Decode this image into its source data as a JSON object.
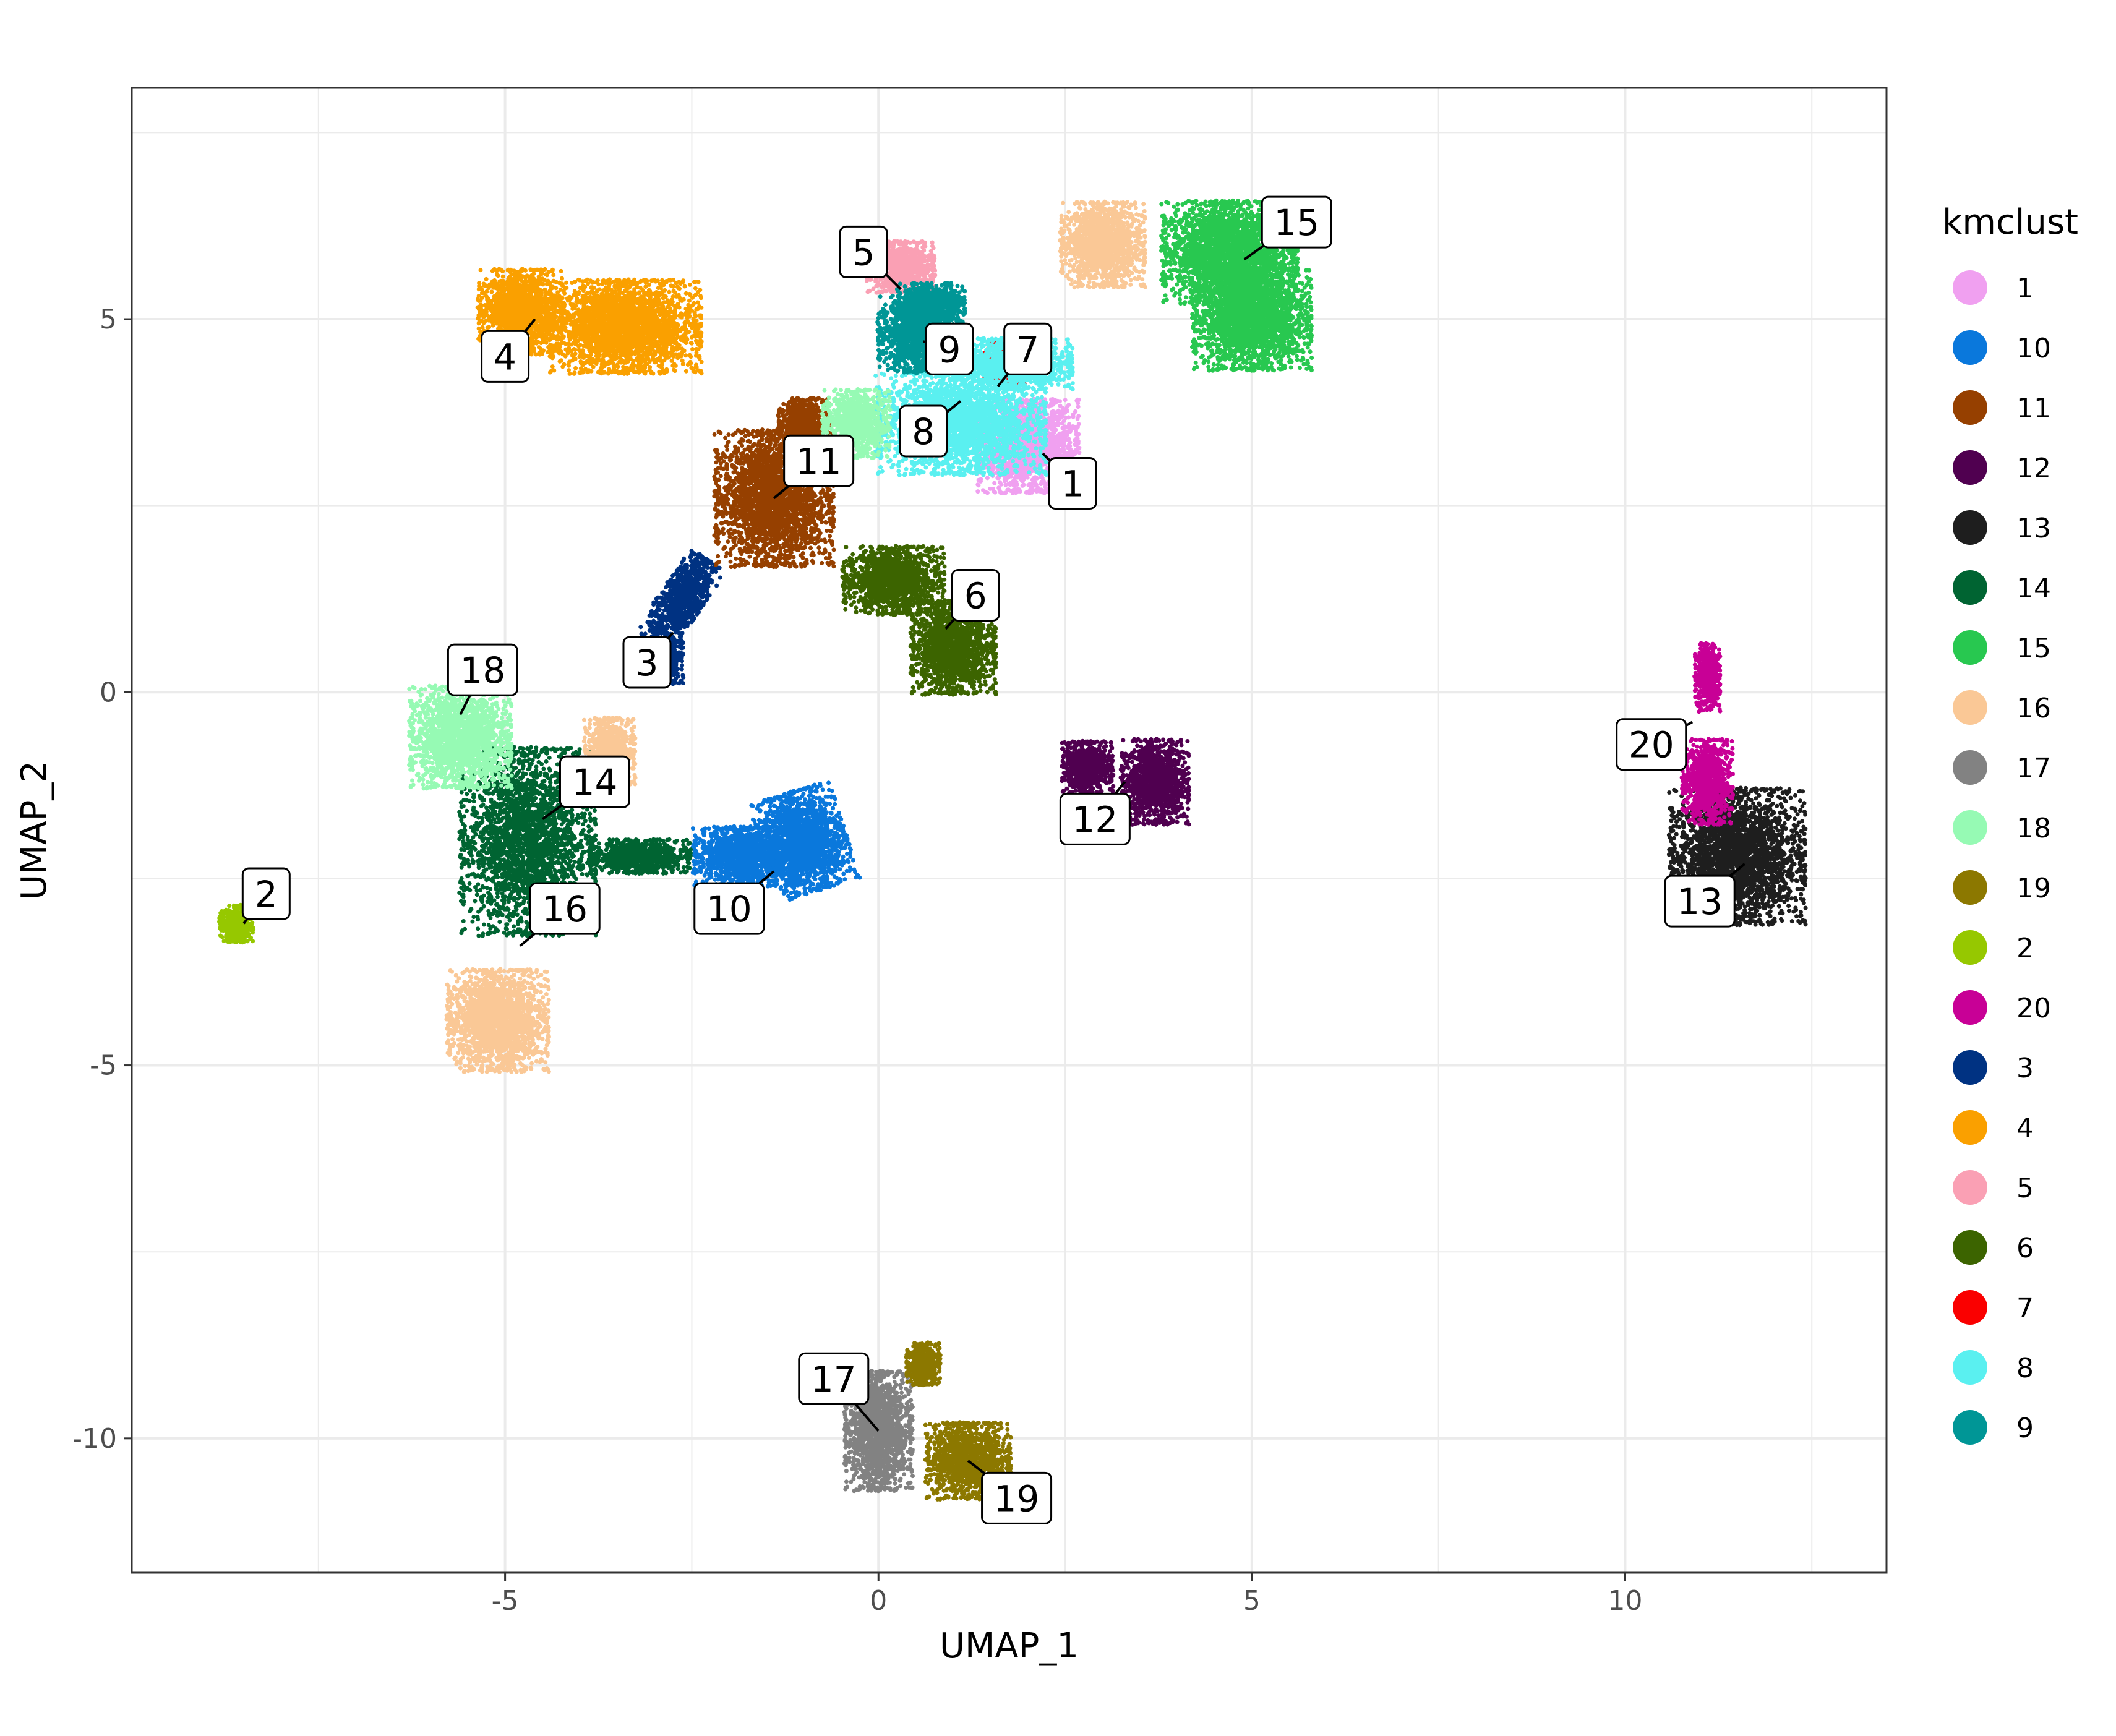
{
  "chart_data": {
    "type": "scatter",
    "title": "",
    "xlabel": "UMAP_1",
    "ylabel": "UMAP_2",
    "xlim": [
      -10,
      13.5
    ],
    "ylim": [
      -11.8,
      8.1
    ],
    "xticks": [
      -5,
      0,
      5,
      10
    ],
    "yticks": [
      -10,
      -5,
      0,
      5
    ],
    "xtick_labels": [
      "-5",
      "0",
      "5",
      "10"
    ],
    "ytick_labels": [
      "-10",
      "-5",
      "0",
      "5"
    ],
    "grid": true,
    "legend": {
      "title": "kmclust",
      "placement": "right",
      "entries": [
        {
          "name": "1",
          "color": "#F0A0F0"
        },
        {
          "name": "10",
          "color": "#0A78DC"
        },
        {
          "name": "11",
          "color": "#964000"
        },
        {
          "name": "12",
          "color": "#500050"
        },
        {
          "name": "13",
          "color": "#1E1E1E"
        },
        {
          "name": "14",
          "color": "#006432"
        },
        {
          "name": "15",
          "color": "#28C850"
        },
        {
          "name": "16",
          "color": "#FAC896"
        },
        {
          "name": "17",
          "color": "#828282"
        },
        {
          "name": "18",
          "color": "#96FAB4"
        },
        {
          "name": "19",
          "color": "#8C7800"
        },
        {
          "name": "2",
          "color": "#96C800"
        },
        {
          "name": "20",
          "color": "#C80096"
        },
        {
          "name": "3",
          "color": "#003282"
        },
        {
          "name": "4",
          "color": "#FAA000"
        },
        {
          "name": "5",
          "color": "#FAA0B4"
        },
        {
          "name": "6",
          "color": "#3C6400"
        },
        {
          "name": "7",
          "color": "#FA0000"
        },
        {
          "name": "8",
          "color": "#5AF0F0"
        },
        {
          "name": "9",
          "color": "#009696"
        }
      ]
    },
    "clusters": [
      {
        "name": "1",
        "color": "#F0A0F0",
        "blobs": [
          [
            2.0,
            3.3,
            0.6,
            0.55,
            0
          ]
        ],
        "label_at": [
          2.6,
          2.8
        ],
        "point_at": [
          2.2,
          3.2
        ]
      },
      {
        "name": "2",
        "color": "#96C800",
        "blobs": [
          [
            -8.6,
            -3.1,
            0.2,
            0.22,
            0
          ]
        ],
        "label_at": [
          -8.2,
          -2.7
        ],
        "point_at": [
          -8.5,
          -3.1
        ]
      },
      {
        "name": "3",
        "color": "#003282",
        "blobs": [
          [
            -2.6,
            1.3,
            0.25,
            0.5,
            -0.6
          ],
          [
            -2.9,
            0.5,
            0.25,
            0.35,
            0
          ]
        ],
        "label_at": [
          -3.1,
          0.4
        ],
        "point_at": [
          -2.75,
          0.8
        ]
      },
      {
        "name": "4",
        "color": "#FAA000",
        "blobs": [
          [
            -4.8,
            5.1,
            0.5,
            0.5,
            0
          ],
          [
            -3.4,
            4.9,
            0.9,
            0.55,
            0
          ]
        ],
        "label_at": [
          -5.0,
          4.5
        ],
        "point_at": [
          -4.6,
          5.0
        ]
      },
      {
        "name": "5",
        "color": "#FAA0B4",
        "blobs": [
          [
            0.3,
            5.7,
            0.4,
            0.3,
            0
          ]
        ],
        "label_at": [
          -0.2,
          5.9
        ],
        "point_at": [
          0.3,
          5.4
        ]
      },
      {
        "name": "6",
        "color": "#3C6400",
        "blobs": [
          [
            0.2,
            1.5,
            0.6,
            0.4,
            0
          ],
          [
            1.0,
            0.6,
            0.5,
            0.55,
            0
          ]
        ],
        "label_at": [
          1.3,
          1.3
        ],
        "point_at": [
          0.9,
          0.85
        ]
      },
      {
        "name": "7",
        "color": "#FA0000",
        "blobs": [
          [
            1.7,
            4.4,
            0.25,
            0.25,
            0
          ]
        ],
        "label_at": [
          2.0,
          4.6
        ],
        "point_at": [
          1.6,
          4.1
        ]
      },
      {
        "name": "8",
        "color": "#5AF0F0",
        "blobs": [
          [
            1.1,
            3.6,
            1.0,
            0.6,
            0
          ],
          [
            1.8,
            4.4,
            0.7,
            0.3,
            0
          ]
        ],
        "label_at": [
          0.6,
          3.5
        ],
        "point_at": [
          1.1,
          3.9
        ]
      },
      {
        "name": "9",
        "color": "#009696",
        "blobs": [
          [
            0.5,
            4.8,
            0.45,
            0.45,
            0
          ],
          [
            0.7,
            5.2,
            0.4,
            0.25,
            0
          ]
        ],
        "label_at": [
          0.95,
          4.6
        ],
        "point_at": [
          0.6,
          4.7
        ]
      },
      {
        "name": "10",
        "color": "#0A78DC",
        "blobs": [
          [
            -1.8,
            -2.2,
            0.6,
            0.35,
            0
          ],
          [
            -1.0,
            -2.0,
            0.5,
            0.6,
            0.3
          ]
        ],
        "label_at": [
          -2.0,
          -2.9
        ],
        "point_at": [
          -1.4,
          -2.4
        ]
      },
      {
        "name": "11",
        "color": "#964000",
        "blobs": [
          [
            -1.4,
            2.6,
            0.7,
            0.8,
            0
          ],
          [
            -1.0,
            3.6,
            0.3,
            0.3,
            0
          ]
        ],
        "label_at": [
          -0.8,
          3.1
        ],
        "point_at": [
          -1.4,
          2.6
        ]
      },
      {
        "name": "12",
        "color": "#500050",
        "blobs": [
          [
            3.7,
            -1.2,
            0.4,
            0.5,
            0
          ],
          [
            2.8,
            -1.0,
            0.3,
            0.3,
            0
          ]
        ],
        "label_at": [
          2.9,
          -1.7
        ],
        "point_at": [
          3.3,
          -1.2
        ]
      },
      {
        "name": "13",
        "color": "#1E1E1E",
        "blobs": [
          [
            11.5,
            -2.2,
            0.8,
            0.8,
            0
          ]
        ],
        "label_at": [
          11.0,
          -2.8
        ],
        "point_at": [
          11.6,
          -2.3
        ]
      },
      {
        "name": "14",
        "color": "#006432",
        "blobs": [
          [
            -4.7,
            -2.0,
            0.8,
            1.1,
            0
          ],
          [
            -3.2,
            -2.2,
            0.6,
            0.2,
            0
          ]
        ],
        "label_at": [
          -3.8,
          -1.2
        ],
        "point_at": [
          -4.5,
          -1.7
        ]
      },
      {
        "name": "15",
        "color": "#28C850",
        "blobs": [
          [
            4.7,
            5.9,
            0.8,
            0.6,
            0
          ],
          [
            5.0,
            5.0,
            0.7,
            0.6,
            0
          ]
        ],
        "label_at": [
          5.6,
          6.3
        ],
        "point_at": [
          4.9,
          5.8
        ]
      },
      {
        "name": "16",
        "color": "#FAC896",
        "blobs": [
          [
            -5.1,
            -4.4,
            0.6,
            0.6,
            0
          ],
          [
            -3.6,
            -0.8,
            0.3,
            0.4,
            0
          ],
          [
            3.0,
            6.0,
            0.5,
            0.5,
            0
          ]
        ],
        "label_at": [
          -4.2,
          -2.9
        ],
        "point_at": [
          -4.8,
          -3.4
        ]
      },
      {
        "name": "17",
        "color": "#828282",
        "blobs": [
          [
            0.0,
            -9.9,
            0.4,
            0.7,
            0
          ]
        ],
        "label_at": [
          -0.6,
          -9.2
        ],
        "point_at": [
          0.0,
          -9.9
        ]
      },
      {
        "name": "18",
        "color": "#96FAB4",
        "blobs": [
          [
            -5.6,
            -0.6,
            0.6,
            0.6,
            0
          ],
          [
            -0.3,
            3.6,
            0.4,
            0.4,
            0
          ]
        ],
        "label_at": [
          -5.3,
          0.3
        ],
        "point_at": [
          -5.6,
          -0.3
        ]
      },
      {
        "name": "19",
        "color": "#8C7800",
        "blobs": [
          [
            1.2,
            -10.3,
            0.5,
            0.45,
            0
          ],
          [
            0.6,
            -9.0,
            0.2,
            0.25,
            0
          ]
        ],
        "label_at": [
          1.85,
          -10.8
        ],
        "point_at": [
          1.2,
          -10.3
        ]
      },
      {
        "name": "20",
        "color": "#C80096",
        "blobs": [
          [
            11.1,
            -1.2,
            0.3,
            0.5,
            0
          ],
          [
            11.1,
            0.2,
            0.15,
            0.4,
            0
          ]
        ],
        "label_at": [
          10.35,
          -0.7
        ],
        "point_at": [
          10.9,
          -0.4
        ]
      }
    ]
  }
}
